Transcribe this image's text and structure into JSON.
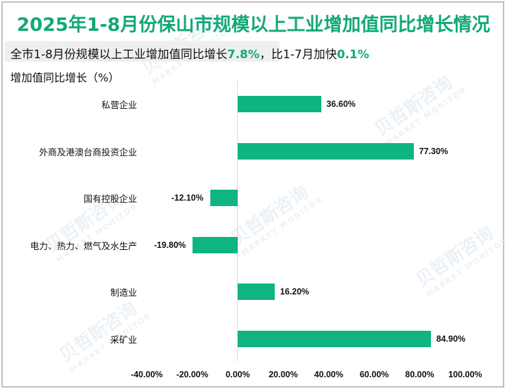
{
  "title": "2025年1-8月份保山市规模以上工业增加值同比增长情况",
  "subtitle": {
    "prefix": "全市1-8月份规模以上工业增加值同比增长",
    "growth": "7.8%",
    "middle": "，比1-7月加快",
    "accel": "0.1%"
  },
  "watermark": {
    "cn": "贝哲斯咨询",
    "en": "MARKET MONITOR"
  },
  "chart_data": {
    "type": "bar",
    "orientation": "horizontal",
    "title": "2025年1-8月份保山市规模以上工业增加值同比增长情况",
    "ylabel": "增加值同比增长（%）",
    "xlabel": "",
    "categories": [
      "私营企业",
      "外商及港澳台商投资企业",
      "国有控股企业",
      "电力、热力、燃气及水生产",
      "制造业",
      "采矿业"
    ],
    "values": [
      36.6,
      77.3,
      -12.1,
      -19.8,
      16.2,
      84.9
    ],
    "value_labels": [
      "36.60%",
      "77.30%",
      "-12.10%",
      "-19.80%",
      "16.20%",
      "84.90%"
    ],
    "xlim": [
      -40,
      100
    ],
    "x_ticks": [
      "-40.00%",
      "-20.00%",
      "0.00%",
      "20.00%",
      "40.00%",
      "60.00%",
      "80.00%",
      "100.00%"
    ],
    "grid": false,
    "legend": "none",
    "bar_color": "#10b481"
  }
}
